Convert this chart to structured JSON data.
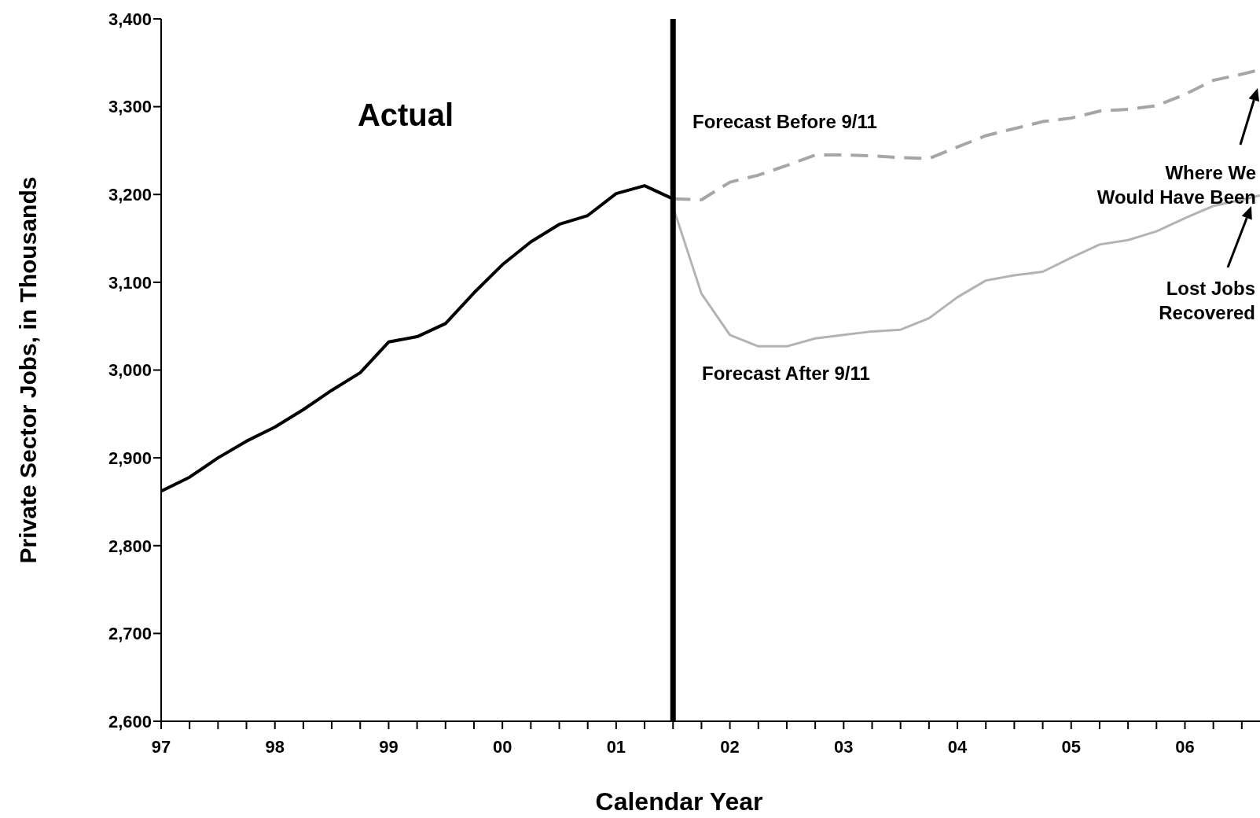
{
  "chart_data": {
    "type": "line",
    "xlabel": "Calendar Year",
    "ylabel": "Private Sector Jobs, in Thousands",
    "xlim": [
      1997,
      2006.66
    ],
    "ylim": [
      2600,
      3400
    ],
    "xticks": [
      {
        "value": 1997,
        "label": "97"
      },
      {
        "value": 1997.25,
        "label": null
      },
      {
        "value": 1997.5,
        "label": null
      },
      {
        "value": 1997.75,
        "label": null
      },
      {
        "value": 1998,
        "label": "98"
      },
      {
        "value": 1998.25,
        "label": null
      },
      {
        "value": 1998.5,
        "label": null
      },
      {
        "value": 1998.75,
        "label": null
      },
      {
        "value": 1999,
        "label": "99"
      },
      {
        "value": 1999.25,
        "label": null
      },
      {
        "value": 1999.5,
        "label": null
      },
      {
        "value": 1999.75,
        "label": null
      },
      {
        "value": 2000,
        "label": "00"
      },
      {
        "value": 2000.25,
        "label": null
      },
      {
        "value": 2000.5,
        "label": null
      },
      {
        "value": 2000.75,
        "label": null
      },
      {
        "value": 2001,
        "label": "01"
      },
      {
        "value": 2001.25,
        "label": null
      },
      {
        "value": 2001.5,
        "label": null
      },
      {
        "value": 2001.75,
        "label": null
      },
      {
        "value": 2002,
        "label": "02"
      },
      {
        "value": 2002.25,
        "label": null
      },
      {
        "value": 2002.5,
        "label": null
      },
      {
        "value": 2002.75,
        "label": null
      },
      {
        "value": 2003,
        "label": "03"
      },
      {
        "value": 2003.25,
        "label": null
      },
      {
        "value": 2003.5,
        "label": null
      },
      {
        "value": 2003.75,
        "label": null
      },
      {
        "value": 2004,
        "label": "04"
      },
      {
        "value": 2004.25,
        "label": null
      },
      {
        "value": 2004.5,
        "label": null
      },
      {
        "value": 2004.75,
        "label": null
      },
      {
        "value": 2005,
        "label": "05"
      },
      {
        "value": 2005.25,
        "label": null
      },
      {
        "value": 2005.5,
        "label": null
      },
      {
        "value": 2005.75,
        "label": null
      },
      {
        "value": 2006,
        "label": "06"
      },
      {
        "value": 2006.25,
        "label": null
      },
      {
        "value": 2006.5,
        "label": null
      }
    ],
    "yticks": [
      {
        "value": 2600,
        "label": "2,600"
      },
      {
        "value": 2700,
        "label": "2,700"
      },
      {
        "value": 2800,
        "label": "2,800"
      },
      {
        "value": 2900,
        "label": "2,900"
      },
      {
        "value": 3000,
        "label": "3,000"
      },
      {
        "value": 3100,
        "label": "3,100"
      },
      {
        "value": 3200,
        "label": "3,200"
      },
      {
        "value": 3300,
        "label": "3,300"
      },
      {
        "value": 3400,
        "label": "3,400"
      }
    ],
    "marker": "none",
    "series": [
      {
        "color": "#000000",
        "line_style": "solid",
        "x": [
          1997,
          1997.25,
          1997.5,
          1997.75,
          1998,
          1998.25,
          1998.5,
          1998.75,
          1999,
          1999.25,
          1999.5,
          1999.75,
          2000,
          2000.25,
          2000.5,
          2000.75,
          2001,
          2001.25,
          2001.5
        ],
        "values": [
          2862,
          2878,
          2900,
          2919,
          2935,
          2955,
          2977,
          2997,
          3032,
          3038,
          3053,
          3088,
          3120,
          3146,
          3166,
          3176,
          3201,
          3210,
          3195
        ]
      },
      {
        "name": "Forecast Before 9/11",
        "color": "#a6a6a6",
        "line_style": "dashed",
        "x": [
          2001.5,
          2001.75,
          2002,
          2002.25,
          2002.5,
          2002.75,
          2003,
          2003.25,
          2003.5,
          2003.75,
          2004,
          2004.25,
          2004.5,
          2004.75,
          2005,
          2005.25,
          2005.5,
          2005.75,
          2006,
          2006.25,
          2006.5,
          2006.66
        ],
        "values": [
          3195,
          3194,
          3214,
          3222,
          3233,
          3245,
          3245,
          3244,
          3242,
          3241,
          3254,
          3267,
          3275,
          3283,
          3287,
          3295,
          3297,
          3301,
          3314,
          3330,
          3337,
          3342
        ]
      },
      {
        "name": "Forecast After 9/11",
        "color": "#b3b3b3",
        "line_style": "solid",
        "x": [
          2001.5,
          2001.75,
          2002,
          2002.25,
          2002.5,
          2002.75,
          2003,
          2003.25,
          2003.5,
          2003.75,
          2004,
          2004.25,
          2004.5,
          2004.75,
          2005,
          2005.25,
          2005.5,
          2005.75,
          2006,
          2006.25,
          2006.5,
          2006.66
        ],
        "values": [
          3186,
          3087,
          3040,
          3027,
          3027,
          3036,
          3040,
          3044,
          3046,
          3059,
          3083,
          3102,
          3108,
          3112,
          3128,
          3143,
          3148,
          3158,
          3173,
          3187,
          3194,
          3199
        ]
      }
    ],
    "ref_lines": [
      {
        "axis": "x",
        "value": 2001.5,
        "color": "#000000",
        "line_style": "solid"
      }
    ],
    "annotations": [
      "Actual",
      "Where We\nWould Have Been",
      "Lost Jobs\nRecovered"
    ]
  }
}
